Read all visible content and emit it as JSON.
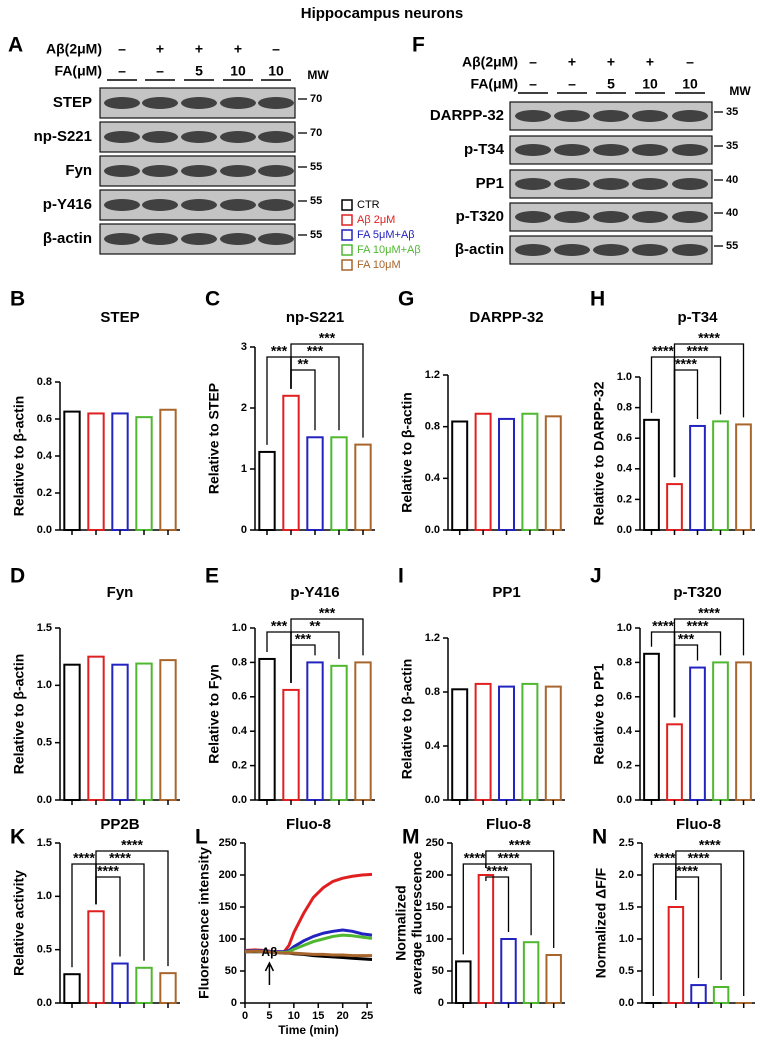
{
  "title": "Hippocampus neurons",
  "legend": [
    {
      "name": "CTR",
      "color": "#000000"
    },
    {
      "name": "Aβ 2μM",
      "color": "#e02020"
    },
    {
      "name": "FA 5μM+Aβ",
      "color": "#2323c0"
    },
    {
      "name": "FA 10μM+Aβ",
      "color": "#4fb830"
    },
    {
      "name": "FA 10μM",
      "color": "#a8652c"
    }
  ],
  "blots": [
    {
      "panel": "A",
      "conditions": [
        {
          "label": "Aβ(2μM)",
          "lanes": [
            "–",
            "+",
            "+",
            "+",
            "–"
          ]
        },
        {
          "label": "FA(μM)",
          "lanes": [
            "–",
            "–",
            5,
            10,
            10
          ]
        }
      ],
      "mw_title": "MW",
      "rows": [
        {
          "label": "STEP",
          "mw": 70
        },
        {
          "label": "np-S221",
          "mw": 70
        },
        {
          "label": "Fyn",
          "mw": 55
        },
        {
          "label": "p-Y416",
          "mw": 55
        },
        {
          "label": "β-actin",
          "mw": 55
        }
      ]
    },
    {
      "panel": "F",
      "conditions": [
        {
          "label": "Aβ(2μM)",
          "lanes": [
            "–",
            "+",
            "+",
            "+",
            "–"
          ]
        },
        {
          "label": "FA(μM)",
          "lanes": [
            "–",
            "–",
            5,
            10,
            10
          ]
        }
      ],
      "mw_title": "MW",
      "rows": [
        {
          "label": "DARPP-32",
          "mw": 35
        },
        {
          "label": "p-T34",
          "mw": 35
        },
        {
          "label": "PP1",
          "mw": 40
        },
        {
          "label": "p-T320",
          "mw": 40
        },
        {
          "label": "β-actin",
          "mw": 55
        }
      ]
    }
  ],
  "chart_data": [
    {
      "type": "bar",
      "panel": "B",
      "title": "STEP",
      "ylabel": "Relative to β-actin",
      "categories": [
        null,
        null,
        null,
        null,
        null
      ],
      "values": [
        0.64,
        0.63,
        0.63,
        0.61,
        0.65
      ],
      "ylim": [
        0,
        0.8
      ],
      "yticks": [
        {
          "value": 0,
          "label": "0.0"
        },
        0.2,
        0.4,
        0.6,
        0.8
      ],
      "significance": []
    },
    {
      "type": "bar",
      "panel": "C",
      "title": "np-S221",
      "ylabel": "Relative to STEP",
      "categories": [
        null,
        null,
        null,
        null,
        null
      ],
      "values": [
        1.28,
        2.2,
        1.52,
        1.52,
        1.4
      ],
      "ylim": [
        0,
        3
      ],
      "yticks": [
        0,
        1,
        2,
        3
      ],
      "significance": [
        "***",
        "**",
        "***",
        "***"
      ]
    },
    {
      "type": "bar",
      "panel": "D",
      "title": "Fyn",
      "ylabel": "Relative to β-actin",
      "categories": [
        null,
        null,
        null,
        null,
        null
      ],
      "values": [
        1.18,
        1.25,
        1.18,
        1.19,
        1.22
      ],
      "ylim": [
        0,
        1.5
      ],
      "yticks": [
        {
          "value": 0,
          "label": "0.0"
        },
        0.5,
        {
          "value": 1,
          "label": "1.0"
        },
        1.5
      ],
      "significance": []
    },
    {
      "type": "bar",
      "panel": "E",
      "title": "p-Y416",
      "ylabel": "Relative to Fyn",
      "categories": [
        null,
        null,
        null,
        null,
        null
      ],
      "values": [
        0.82,
        0.64,
        0.8,
        0.78,
        0.8
      ],
      "ylim": [
        0,
        1
      ],
      "yticks": [
        {
          "value": 0,
          "label": "0.0"
        },
        0.2,
        0.4,
        0.6,
        0.8,
        {
          "value": 1,
          "label": "1.0"
        }
      ],
      "significance": [
        "***",
        "***",
        "**",
        "***"
      ]
    },
    {
      "type": "bar",
      "panel": "G",
      "title": "DARPP-32",
      "ylabel": "Relative to β-actin",
      "categories": [
        null,
        null,
        null,
        null,
        null
      ],
      "values": [
        0.84,
        0.9,
        0.86,
        0.9,
        0.88
      ],
      "ylim": [
        0,
        1.2
      ],
      "yticks": [
        {
          "value": 0,
          "label": "0.0"
        },
        0.4,
        0.8,
        1.2
      ],
      "significance": []
    },
    {
      "type": "bar",
      "panel": "H",
      "title": "p-T34",
      "ylabel": "Relative to DARPP-32",
      "categories": [
        null,
        null,
        null,
        null,
        null
      ],
      "values": [
        0.72,
        0.3,
        0.68,
        0.71,
        0.69
      ],
      "ylim": [
        0,
        1
      ],
      "yticks": [
        {
          "value": 0,
          "label": "0.0"
        },
        0.2,
        0.4,
        0.6,
        0.8,
        {
          "value": 1,
          "label": "1.0"
        }
      ],
      "significance": [
        "****",
        "****",
        "****",
        "****"
      ]
    },
    {
      "type": "bar",
      "panel": "I",
      "title": "PP1",
      "ylabel": "Relative to β-actin",
      "categories": [
        null,
        null,
        null,
        null,
        null
      ],
      "values": [
        0.82,
        0.86,
        0.84,
        0.86,
        0.84
      ],
      "ylim": [
        0,
        1.2
      ],
      "yticks": [
        {
          "value": 0,
          "label": "0.0"
        },
        0.4,
        0.8,
        1.2
      ],
      "significance": []
    },
    {
      "type": "bar",
      "panel": "J",
      "title": "p-T320",
      "ylabel": "Relative to PP1",
      "categories": [
        null,
        null,
        null,
        null,
        null
      ],
      "values": [
        0.85,
        0.44,
        0.77,
        0.8,
        0.8
      ],
      "ylim": [
        0,
        1
      ],
      "yticks": [
        {
          "value": 0,
          "label": "0.0"
        },
        0.2,
        0.4,
        0.6,
        0.8,
        {
          "value": 1,
          "label": "1.0"
        }
      ],
      "significance": [
        "****",
        "***",
        "****",
        "****"
      ]
    },
    {
      "type": "bar",
      "panel": "K",
      "title": "PP2B",
      "ylabel": "Relative activity",
      "categories": [
        null,
        null,
        null,
        null,
        null
      ],
      "values": [
        0.27,
        0.86,
        0.37,
        0.33,
        0.28
      ],
      "ylim": [
        0,
        1.5
      ],
      "yticks": [
        {
          "value": 0,
          "label": "0.0"
        },
        0.5,
        {
          "value": 1,
          "label": "1.0"
        },
        1.5
      ],
      "significance": [
        "****",
        "****",
        "****",
        "****"
      ]
    },
    {
      "type": "line",
      "panel": "L",
      "title": "Fluo-8",
      "ylabel": "Fluorescence intensity",
      "xlabel": "Time (min)",
      "x": [
        0,
        2,
        4,
        6,
        8,
        9,
        10,
        12,
        14,
        16,
        18,
        20,
        22,
        24,
        26
      ],
      "series": [
        {
          "values": [
            80,
            80,
            80,
            79,
            78,
            78,
            77,
            76,
            74,
            73,
            72,
            71,
            70,
            69,
            68
          ]
        },
        {
          "values": [
            82,
            83,
            82,
            80,
            80,
            90,
            110,
            140,
            165,
            180,
            190,
            195,
            198,
            200,
            201
          ]
        },
        {
          "values": [
            81,
            82,
            81,
            80,
            80,
            82,
            88,
            97,
            104,
            109,
            112,
            114,
            112,
            108,
            106
          ]
        },
        {
          "values": [
            80,
            81,
            80,
            79,
            79,
            80,
            84,
            90,
            96,
            100,
            104,
            106,
            105,
            103,
            101
          ]
        },
        {
          "values": [
            80,
            81,
            80,
            79,
            78,
            78,
            78,
            77,
            76,
            76,
            75,
            75,
            74,
            74,
            74
          ]
        }
      ],
      "xlim": [
        0,
        26
      ],
      "xticks": [
        0,
        5,
        10,
        15,
        20,
        25
      ],
      "ylim": [
        0,
        250
      ],
      "yticks": [
        0,
        50,
        100,
        150,
        200,
        250
      ],
      "annotations": [
        {
          "text": "Aβ",
          "x": 5
        }
      ]
    },
    {
      "type": "bar",
      "panel": "M",
      "title": "Fluo-8",
      "ylabel": [
        "Normalized",
        "average fluorescence"
      ],
      "categories": [
        null,
        null,
        null,
        null,
        null
      ],
      "values": [
        65,
        200,
        100,
        95,
        75
      ],
      "ylim": [
        0,
        250
      ],
      "yticks": [
        0,
        50,
        100,
        150,
        200,
        250
      ],
      "significance": [
        "****",
        "****",
        "****",
        "****"
      ]
    },
    {
      "type": "bar",
      "panel": "N",
      "title": "Fluo-8",
      "ylabel": "Normalized ΔF/F",
      "categories": [
        null,
        null,
        null,
        null,
        null
      ],
      "values": [
        0,
        1.5,
        0.28,
        0.25,
        0
      ],
      "ylim": [
        0,
        2.5
      ],
      "yticks": [
        {
          "value": 0,
          "label": "0.0"
        },
        0.5,
        {
          "value": 1,
          "label": "1.0"
        },
        1.5,
        {
          "value": 2,
          "label": "2.0"
        },
        2.5
      ],
      "significance": [
        "****",
        "****",
        "****",
        "****"
      ]
    }
  ]
}
